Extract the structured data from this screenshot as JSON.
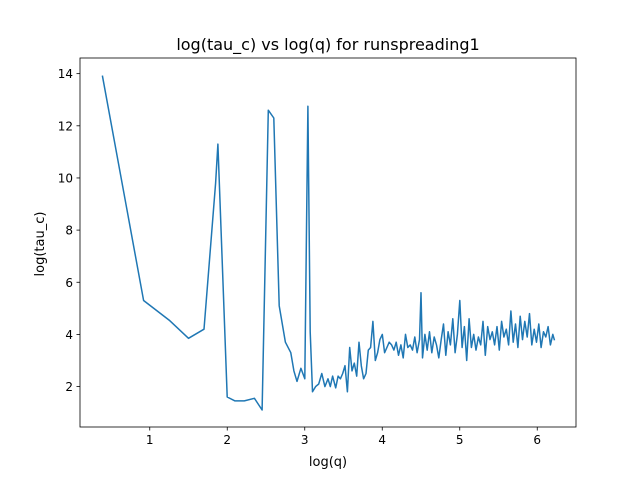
{
  "chart_data": {
    "type": "line",
    "title": "log(tau_c) vs log(q) for runspreading1",
    "xlabel": "log(q)",
    "ylabel": "log(tau_c)",
    "xlim": [
      0.1,
      6.5
    ],
    "ylim": [
      0.45,
      14.6
    ],
    "xticks": [
      1,
      2,
      3,
      4,
      5,
      6
    ],
    "yticks": [
      2,
      4,
      6,
      8,
      10,
      12,
      14
    ],
    "xtick_labels": [
      "1",
      "2",
      "3",
      "4",
      "5",
      "6"
    ],
    "ytick_labels": [
      "2",
      "4",
      "6",
      "8",
      "10",
      "12",
      "14"
    ],
    "grid": false,
    "legend": "none",
    "series": [
      {
        "color": "#1f77b4",
        "x": [
          0.39,
          0.92,
          1.25,
          1.5,
          1.7,
          1.85,
          1.88,
          2.0,
          2.1,
          2.22,
          2.35,
          2.45,
          2.53,
          2.6,
          2.67,
          2.75,
          2.82,
          2.86,
          2.9,
          2.95,
          3.0,
          3.04,
          3.07,
          3.1,
          3.14,
          3.18,
          3.22,
          3.26,
          3.3,
          3.33,
          3.36,
          3.4,
          3.43,
          3.46,
          3.49,
          3.52,
          3.55,
          3.58,
          3.61,
          3.64,
          3.67,
          3.7,
          3.73,
          3.76,
          3.79,
          3.82,
          3.85,
          3.88,
          3.91,
          3.94,
          3.97,
          4.0,
          4.03,
          4.06,
          4.09,
          4.12,
          4.15,
          4.18,
          4.21,
          4.24,
          4.27,
          4.3,
          4.33,
          4.36,
          4.39,
          4.42,
          4.45,
          4.48,
          4.5,
          4.52,
          4.55,
          4.58,
          4.61,
          4.64,
          4.67,
          4.7,
          4.73,
          4.76,
          4.79,
          4.82,
          4.85,
          4.88,
          4.91,
          4.94,
          4.97,
          5.0,
          5.03,
          5.06,
          5.09,
          5.12,
          5.15,
          5.18,
          5.21,
          5.24,
          5.27,
          5.3,
          5.33,
          5.36,
          5.39,
          5.42,
          5.45,
          5.48,
          5.51,
          5.54,
          5.57,
          5.6,
          5.63,
          5.66,
          5.69,
          5.72,
          5.75,
          5.78,
          5.81,
          5.84,
          5.87,
          5.9,
          5.93,
          5.96,
          5.99,
          6.02,
          6.05,
          6.08,
          6.11,
          6.14,
          6.17,
          6.2,
          6.22
        ],
        "y": [
          13.9,
          5.3,
          4.55,
          3.85,
          4.2,
          9.8,
          11.3,
          1.6,
          1.45,
          1.45,
          1.55,
          1.1,
          12.6,
          12.3,
          5.1,
          3.7,
          3.3,
          2.6,
          2.2,
          2.7,
          2.3,
          12.75,
          4.1,
          1.8,
          2.0,
          2.1,
          2.5,
          2.0,
          2.3,
          2.0,
          2.4,
          1.95,
          2.4,
          2.3,
          2.5,
          2.8,
          1.8,
          3.5,
          2.6,
          2.9,
          2.4,
          3.7,
          2.8,
          2.3,
          2.5,
          3.4,
          3.5,
          4.5,
          3.0,
          3.3,
          3.8,
          4.0,
          3.3,
          3.5,
          3.7,
          3.6,
          3.4,
          3.7,
          3.2,
          3.6,
          3.1,
          4.0,
          3.5,
          3.6,
          3.4,
          3.9,
          3.3,
          3.8,
          5.6,
          3.1,
          4.0,
          3.4,
          4.1,
          3.3,
          3.9,
          3.6,
          3.1,
          3.8,
          4.4,
          3.2,
          4.1,
          3.6,
          4.6,
          3.3,
          4.0,
          5.3,
          3.5,
          4.3,
          3.0,
          4.6,
          3.5,
          4.0,
          3.4,
          3.9,
          3.6,
          4.5,
          3.2,
          4.3,
          3.8,
          4.1,
          3.6,
          4.3,
          3.4,
          4.5,
          3.9,
          4.2,
          3.6,
          4.9,
          3.7,
          4.4,
          3.5,
          4.7,
          3.8,
          4.5,
          3.9,
          4.8,
          3.6,
          4.2,
          3.7,
          4.4,
          3.5,
          4.1,
          3.9,
          4.3,
          3.6,
          4.0,
          3.8
        ]
      }
    ]
  }
}
